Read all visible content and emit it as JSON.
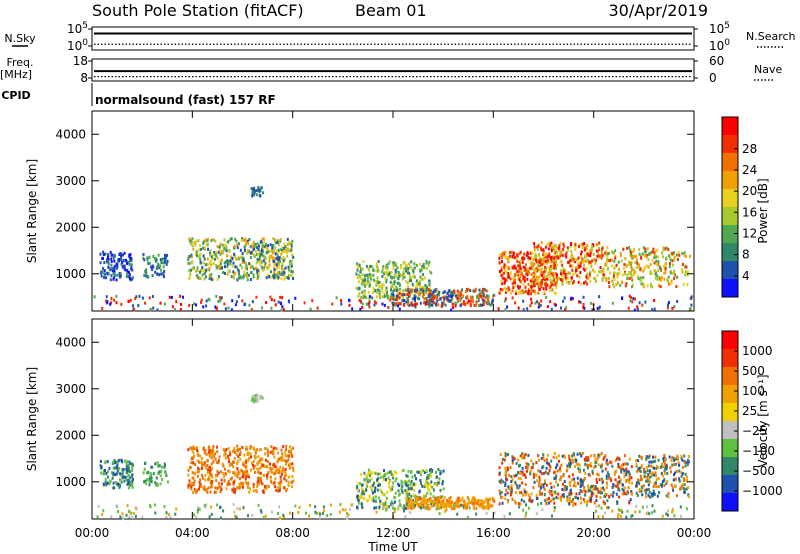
{
  "header": {
    "station": "South Pole Station (fitACF)",
    "beam": "Beam 01",
    "date": "30/Apr/2019"
  },
  "side_labels": {
    "nsky": "N.Sky",
    "freq_top": "Freq.",
    "freq_unit": "[MHz]",
    "cpid": "CPID",
    "nsearch": "N.Search",
    "nave": "Nave"
  },
  "cpid_text": "normalsound (fast) 157 RF",
  "chart_data": [
    {
      "type": "line",
      "panel": "noise",
      "yticks_left": [
        "10^5",
        "10^0"
      ],
      "yticks_right": [
        "10^5",
        "10^0"
      ],
      "series": [
        {
          "name": "N.Sky",
          "style": "solid",
          "level": 0.72
        },
        {
          "name": "N.Search",
          "style": "dotted",
          "level": 0.25
        }
      ]
    },
    {
      "type": "line",
      "panel": "frequency",
      "yticks_left": [
        "18",
        "8"
      ],
      "yticks_right": [
        "60",
        "0"
      ],
      "series": [
        {
          "name": "Freq.",
          "style": "solid",
          "level": 0.45
        },
        {
          "name": "Nave",
          "style": "dotted",
          "level": 0.2
        }
      ]
    },
    {
      "type": "heatmap",
      "panel": "power",
      "ylabel": "Slant Range [km]",
      "yticks": [
        "1000",
        "2000",
        "3000",
        "4000"
      ],
      "ylim": [
        200,
        4500
      ],
      "xlim_hours": [
        0,
        24
      ],
      "colorbar": {
        "label": "Power [dB]",
        "ticks": [
          "4",
          "8",
          "12",
          "16",
          "20",
          "24",
          "28"
        ]
      },
      "palette": [
        "#1010ff",
        "#2050b0",
        "#308868",
        "#50a850",
        "#a8c830",
        "#e8d020",
        "#f0a000",
        "#f07000",
        "#f03000",
        "#ff0000"
      ]
    },
    {
      "type": "heatmap",
      "panel": "velocity",
      "ylabel": "Slant Range [km]",
      "yticks": [
        "1000",
        "2000",
        "3000",
        "4000"
      ],
      "ylim": [
        200,
        4500
      ],
      "xlim_hours": [
        0,
        24
      ],
      "colorbar": {
        "label": "Velocity [m s⁻¹]",
        "ticks": [
          "1000",
          "500",
          "100",
          "25",
          "−25",
          "−100",
          "−500",
          "−1000"
        ]
      },
      "palette": [
        "#1010ff",
        "#2050b0",
        "#308868",
        "#60c040",
        "#c0c0c0",
        "#f0d000",
        "#f0a000",
        "#f07000",
        "#f03000",
        "#ff0000"
      ]
    }
  ],
  "x_axis": {
    "label": "Time UT",
    "ticks": [
      "00:00",
      "04:00",
      "08:00",
      "12:00",
      "16:00",
      "20:00",
      "00:00"
    ]
  }
}
